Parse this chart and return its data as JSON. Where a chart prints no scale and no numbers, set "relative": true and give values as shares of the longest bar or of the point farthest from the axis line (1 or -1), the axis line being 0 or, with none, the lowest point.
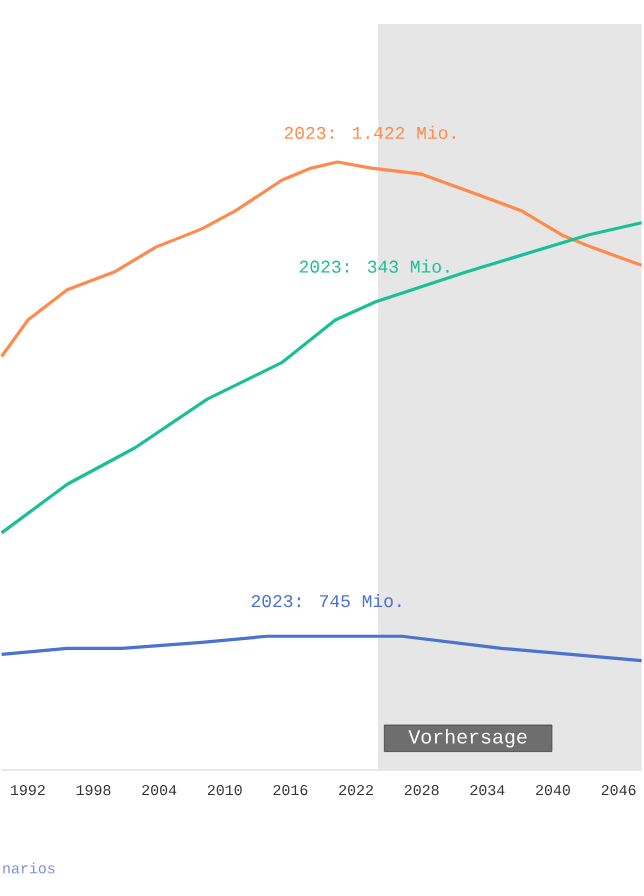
{
  "chart_data": {
    "type": "line",
    "relative": true,
    "xlim": [
      1989.6,
      2048.1
    ],
    "xticks": [
      1992,
      1998,
      2004,
      2010,
      2016,
      2022,
      2028,
      2034,
      2040,
      2046
    ],
    "series": [
      {
        "name": "2023: 1.422 Mio.",
        "color": "#ff8a4c",
        "x": [
          1989.6,
          1992,
          1995.6,
          2000,
          2003.7,
          2007.9,
          2011,
          2015.2,
          2017.9,
          2020.3,
          2023.4,
          2028,
          2032.6,
          2037.1,
          2040.8,
          2043.5,
          2048.1
        ],
        "values": [
          0.68,
          0.74,
          0.79,
          0.82,
          0.86,
          0.89,
          0.92,
          0.97,
          0.99,
          1.0,
          0.99,
          0.98,
          0.95,
          0.92,
          0.88,
          0.86,
          0.83
        ]
      },
      {
        "name": "2023: 343 Mio.",
        "color": "#1bbf94",
        "x": [
          1989.6,
          1995.6,
          2001.8,
          2008.4,
          2015.2,
          2020.1,
          2023.8,
          2032.2,
          2043.2,
          2048.1
        ],
        "values": [
          0.39,
          0.47,
          0.53,
          0.61,
          0.67,
          0.74,
          0.77,
          0.82,
          0.88,
          0.9
        ]
      },
      {
        "name": "2023: 745 Mio.",
        "color": "#4a72d0",
        "x": [
          1989.6,
          1995.6,
          2000.6,
          2007.9,
          2013.9,
          2019.4,
          2026.2,
          2035.3,
          2048.1
        ],
        "values": [
          0.19,
          0.2,
          0.2,
          0.21,
          0.22,
          0.22,
          0.22,
          0.2,
          0.18
        ]
      }
    ],
    "bands": [
      {
        "axis": "x",
        "from": 2024,
        "to": 2048.1,
        "label": "Vorhersage",
        "color": "#e6e6e6"
      }
    ],
    "annotations": [
      "narios"
    ]
  }
}
